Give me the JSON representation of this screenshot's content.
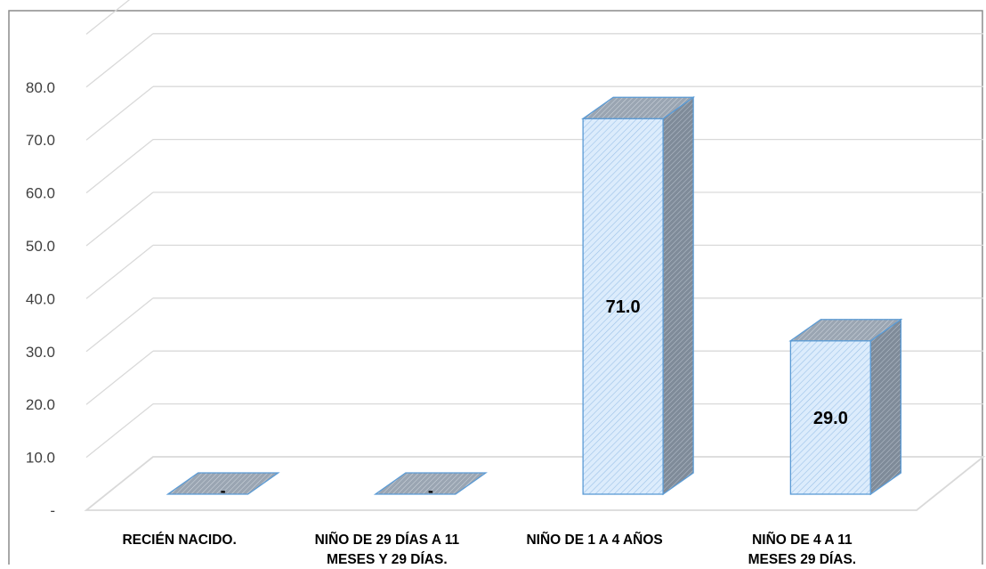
{
  "chart_data": {
    "type": "bar",
    "title": "",
    "xlabel": "",
    "ylabel": "",
    "categories": [
      [
        "RECIÉN NACIDO."
      ],
      [
        "NIÑO DE 29 DÍAS A 11",
        "MESES Y 29 DÍAS."
      ],
      [
        "NIÑO DE 1 A 4 AÑOS"
      ],
      [
        "NIÑO DE  4 A 11",
        "MESES 29 DÍAS."
      ]
    ],
    "values": [
      0,
      0,
      71.0,
      29.0
    ],
    "data_labels": [
      "-",
      "-",
      "71.0",
      "29.0"
    ],
    "y_ticks": [
      "-",
      "10.0",
      "20.0",
      "30.0",
      "40.0",
      "50.0",
      "60.0",
      "70.0",
      "80.0"
    ],
    "ylim": [
      0,
      80
    ],
    "grid": true,
    "legend": "none",
    "colors": {
      "bar_front": "#d6e8fb",
      "bar_side": "#8a97a6",
      "bar_top": "#a7b1bd",
      "bar_edge": "#5b9bd5",
      "gridline": "#d9d9d9",
      "frame": "#7f7f7f",
      "text": "#000000",
      "axis_text": "#404040"
    }
  }
}
